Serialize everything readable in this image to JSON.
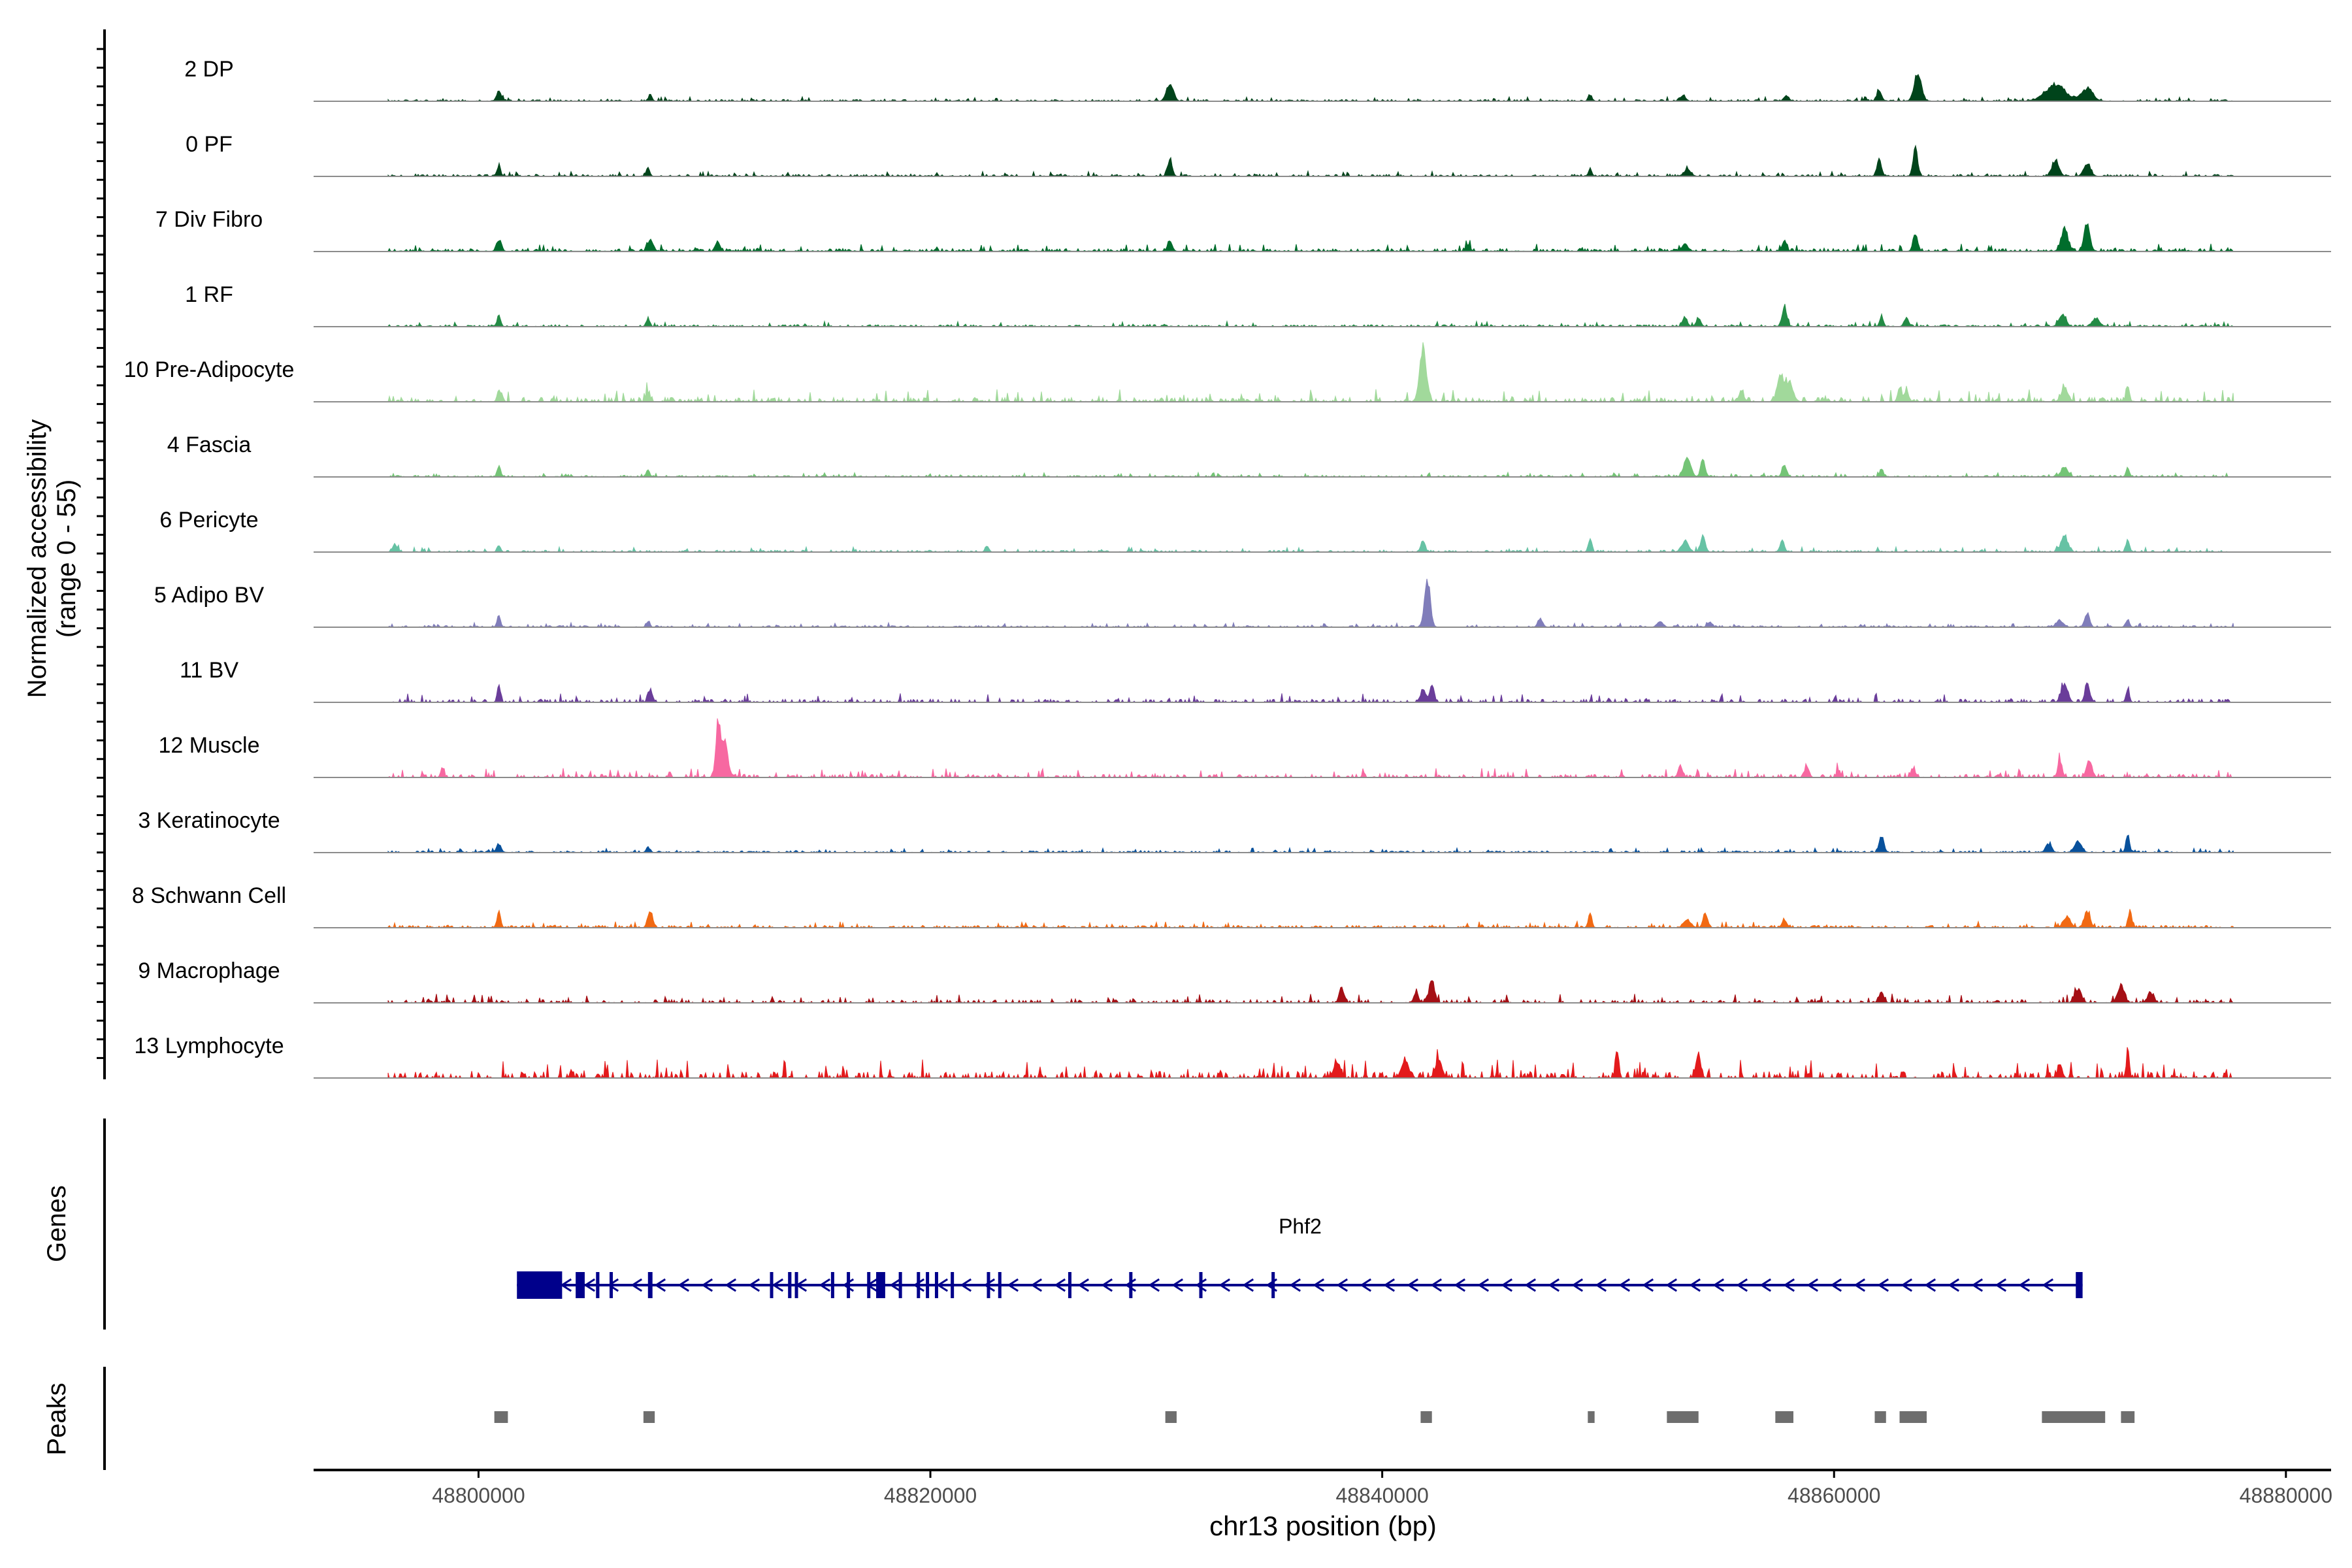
{
  "chart_data": {
    "type": "area",
    "title": "",
    "ylabel_line1": "Normalized accessibility",
    "ylabel_line2": "(range 0 - 55)",
    "y_range": [
      0,
      55
    ],
    "xlabel": "chr13 position (bp)",
    "xlim": [
      48792700,
      48882000
    ],
    "x_ticks": [
      {
        "value": 48800000,
        "label": "48800000"
      },
      {
        "value": 48820000,
        "label": "48820000"
      },
      {
        "value": 48840000,
        "label": "48840000"
      },
      {
        "value": 48860000,
        "label": "48860000"
      },
      {
        "value": 48880000,
        "label": "48880000"
      }
    ],
    "tracks": [
      {
        "name": "2 DP",
        "color": "#00441b",
        "range": [
          48796000,
          48877700
        ],
        "base": 0.03,
        "noise": 0.07,
        "peaks": [
          [
            48800900,
            0.18,
            200
          ],
          [
            48807600,
            0.12,
            150
          ],
          [
            48830600,
            0.28,
            300
          ],
          [
            48849200,
            0.12,
            150
          ],
          [
            48853300,
            0.1,
            250
          ],
          [
            48857900,
            0.1,
            200
          ],
          [
            48862000,
            0.18,
            200
          ],
          [
            48863700,
            0.55,
            300
          ],
          [
            48869800,
            0.28,
            900
          ],
          [
            48871200,
            0.22,
            500
          ]
        ]
      },
      {
        "name": "0 PF",
        "color": "#00441b",
        "range": [
          48796000,
          48877700
        ],
        "base": 0.03,
        "noise": 0.08,
        "peaks": [
          [
            48800900,
            0.2,
            150
          ],
          [
            48807500,
            0.15,
            150
          ],
          [
            48830600,
            0.32,
            200
          ],
          [
            48849200,
            0.12,
            150
          ],
          [
            48853500,
            0.12,
            300
          ],
          [
            48862000,
            0.3,
            200
          ],
          [
            48863600,
            0.5,
            200
          ],
          [
            48869800,
            0.3,
            300
          ],
          [
            48871200,
            0.22,
            300
          ]
        ]
      },
      {
        "name": "7 Div Fibro",
        "color": "#006d2c",
        "range": [
          48796000,
          48877700
        ],
        "base": 0.04,
        "noise": 0.12,
        "peaks": [
          [
            48800900,
            0.22,
            200
          ],
          [
            48807600,
            0.2,
            250
          ],
          [
            48810600,
            0.15,
            200
          ],
          [
            48830600,
            0.18,
            200
          ],
          [
            48843800,
            0.1,
            200
          ],
          [
            48853400,
            0.15,
            250
          ],
          [
            48857800,
            0.2,
            200
          ],
          [
            48863600,
            0.3,
            200
          ],
          [
            48870200,
            0.4,
            300
          ],
          [
            48871200,
            0.55,
            250
          ]
        ]
      },
      {
        "name": "1 RF",
        "color": "#238b45",
        "range": [
          48796000,
          48877700
        ],
        "base": 0.03,
        "noise": 0.08,
        "peaks": [
          [
            48800900,
            0.22,
            150
          ],
          [
            48807500,
            0.15,
            150
          ],
          [
            48853400,
            0.18,
            200
          ],
          [
            48854000,
            0.14,
            200
          ],
          [
            48857800,
            0.38,
            200
          ],
          [
            48862100,
            0.2,
            150
          ],
          [
            48863200,
            0.15,
            200
          ],
          [
            48870100,
            0.2,
            300
          ],
          [
            48871600,
            0.15,
            300
          ]
        ]
      },
      {
        "name": "10 Pre-Adipocyte",
        "color": "#a1d99b",
        "range": [
          48796000,
          48877700
        ],
        "base": 0.02,
        "noise": 0.2,
        "peaks": [
          [
            48800900,
            0.2,
            150
          ],
          [
            48807500,
            0.15,
            200
          ],
          [
            48841800,
            1.0,
            300
          ],
          [
            48855900,
            0.2,
            200
          ],
          [
            48857600,
            0.45,
            250
          ],
          [
            48858000,
            0.35,
            350
          ],
          [
            48862900,
            0.3,
            150
          ],
          [
            48863200,
            0.2,
            200
          ],
          [
            48870200,
            0.25,
            300
          ],
          [
            48873000,
            0.28,
            150
          ]
        ]
      },
      {
        "name": "4 Fascia",
        "color": "#74c476",
        "range": [
          48796000,
          48877700
        ],
        "base": 0.02,
        "noise": 0.07,
        "peaks": [
          [
            48800900,
            0.2,
            150
          ],
          [
            48807500,
            0.12,
            150
          ],
          [
            48853500,
            0.35,
            300
          ],
          [
            48854200,
            0.3,
            200
          ],
          [
            48857800,
            0.22,
            200
          ],
          [
            48862100,
            0.15,
            150
          ],
          [
            48870200,
            0.18,
            300
          ],
          [
            48873000,
            0.15,
            150
          ]
        ]
      },
      {
        "name": "6 Pericyte",
        "color": "#66c2a4",
        "range": [
          48796000,
          48877700
        ],
        "base": 0.02,
        "noise": 0.08,
        "peaks": [
          [
            48796300,
            0.15,
            200
          ],
          [
            48800900,
            0.12,
            150
          ],
          [
            48822500,
            0.1,
            150
          ],
          [
            48841800,
            0.18,
            200
          ],
          [
            48849200,
            0.25,
            150
          ],
          [
            48853400,
            0.2,
            300
          ],
          [
            48854200,
            0.3,
            200
          ],
          [
            48857700,
            0.2,
            200
          ],
          [
            48870200,
            0.3,
            300
          ],
          [
            48873000,
            0.25,
            150
          ]
        ]
      },
      {
        "name": "5 Adipo BV",
        "color": "#807dba",
        "range": [
          48796000,
          48877700
        ],
        "base": 0.02,
        "noise": 0.07,
        "peaks": [
          [
            48800900,
            0.22,
            150
          ],
          [
            48807500,
            0.1,
            150
          ],
          [
            48842000,
            0.85,
            250
          ],
          [
            48847000,
            0.15,
            200
          ],
          [
            48852300,
            0.1,
            250
          ],
          [
            48854500,
            0.1,
            200
          ],
          [
            48870000,
            0.12,
            300
          ],
          [
            48871200,
            0.25,
            200
          ],
          [
            48873000,
            0.15,
            150
          ]
        ]
      },
      {
        "name": "11 BV",
        "color": "#6a3d9a",
        "range": [
          48796000,
          48877700
        ],
        "base": 0.0,
        "noise": 0.15,
        "peaks": [
          [
            48800900,
            0.3,
            150
          ],
          [
            48807600,
            0.25,
            200
          ],
          [
            48841800,
            0.25,
            200
          ],
          [
            48842200,
            0.3,
            200
          ],
          [
            48870200,
            0.3,
            300
          ],
          [
            48871200,
            0.35,
            200
          ],
          [
            48873000,
            0.25,
            150
          ],
          [
            48877800,
            0.2,
            100
          ]
        ]
      },
      {
        "name": "12 Muscle",
        "color": "#f768a1",
        "range": [
          48796000,
          48877700
        ],
        "base": 0.0,
        "noise": 0.15,
        "peaks": [
          [
            48810600,
            1.0,
            200
          ],
          [
            48810900,
            0.6,
            300
          ],
          [
            48798400,
            0.2,
            150
          ],
          [
            48853200,
            0.2,
            200
          ],
          [
            48858800,
            0.2,
            200
          ],
          [
            48860200,
            0.15,
            150
          ],
          [
            48863500,
            0.18,
            200
          ],
          [
            48870000,
            0.3,
            200
          ],
          [
            48871300,
            0.3,
            250
          ]
        ]
      },
      {
        "name": "3 Keratinocyte",
        "color": "#08519c",
        "range": [
          48796000,
          48877700
        ],
        "base": 0.03,
        "noise": 0.07,
        "peaks": [
          [
            48800900,
            0.15,
            200
          ],
          [
            48807500,
            0.1,
            150
          ],
          [
            48862100,
            0.32,
            200
          ],
          [
            48869500,
            0.15,
            250
          ],
          [
            48870800,
            0.2,
            300
          ],
          [
            48873000,
            0.35,
            150
          ]
        ]
      },
      {
        "name": "8 Schwann Cell",
        "color": "#f16913",
        "range": [
          48796000,
          48877700
        ],
        "base": 0.03,
        "noise": 0.1,
        "peaks": [
          [
            48800900,
            0.3,
            150
          ],
          [
            48807600,
            0.32,
            200
          ],
          [
            48849200,
            0.28,
            150
          ],
          [
            48853500,
            0.15,
            300
          ],
          [
            48854300,
            0.25,
            200
          ],
          [
            48857800,
            0.15,
            200
          ],
          [
            48870300,
            0.2,
            300
          ],
          [
            48871200,
            0.3,
            250
          ],
          [
            48873100,
            0.3,
            150
          ]
        ]
      },
      {
        "name": "9 Macrophage",
        "color": "#a50f15",
        "range": [
          48796000,
          48877700
        ],
        "base": 0.0,
        "noise": 0.15,
        "peaks": [
          [
            48838200,
            0.3,
            200
          ],
          [
            48842200,
            0.4,
            250
          ],
          [
            48841500,
            0.2,
            200
          ],
          [
            48862100,
            0.2,
            200
          ],
          [
            48870800,
            0.25,
            300
          ],
          [
            48872700,
            0.3,
            300
          ],
          [
            48874000,
            0.2,
            250
          ]
        ]
      },
      {
        "name": "13 Lymphocyte",
        "color": "#e31a1c",
        "range": [
          48796000,
          48877700
        ],
        "base": 0.0,
        "noise": 0.3,
        "peaks": [
          [
            48850400,
            0.55,
            150
          ],
          [
            48854000,
            0.45,
            200
          ],
          [
            48873000,
            0.6,
            120
          ],
          [
            48838000,
            0.3,
            300
          ],
          [
            48841000,
            0.35,
            300
          ],
          [
            48842500,
            0.3,
            300
          ],
          [
            48870000,
            0.25,
            200
          ]
        ]
      }
    ],
    "genes": {
      "label": "Genes",
      "name": "Phf2",
      "color": "#00008b",
      "strand": "-",
      "start": 48801700,
      "end": 48871000,
      "exons": [
        [
          48801700,
          48803700
        ],
        [
          48804300,
          48804700
        ],
        [
          48805200,
          48805350
        ],
        [
          48805800,
          48805900
        ],
        [
          48807500,
          48807700
        ],
        [
          48812900,
          48813000
        ],
        [
          48813700,
          48813850
        ],
        [
          48814000,
          48814100
        ],
        [
          48815600,
          48815700
        ],
        [
          48816300,
          48816400
        ],
        [
          48817200,
          48817300
        ],
        [
          48817600,
          48818000
        ],
        [
          48818600,
          48818700
        ],
        [
          48819400,
          48819500
        ],
        [
          48819800,
          48819900
        ],
        [
          48820200,
          48820300
        ],
        [
          48820900,
          48821000
        ],
        [
          48822500,
          48822600
        ],
        [
          48823000,
          48823100
        ],
        [
          48826100,
          48826200
        ],
        [
          48828800,
          48828900
        ],
        [
          48831900,
          48832000
        ],
        [
          48835100,
          48835200
        ],
        [
          48870700,
          48871000
        ]
      ]
    },
    "peaks": {
      "label": "Peaks",
      "color": "#6e6e6e",
      "intervals": [
        [
          48800700,
          48801300
        ],
        [
          48807300,
          48807800
        ],
        [
          48830400,
          48830900
        ],
        [
          48841700,
          48842200
        ],
        [
          48849100,
          48849400
        ],
        [
          48852600,
          48854000
        ],
        [
          48857400,
          48858200
        ],
        [
          48861800,
          48862300
        ],
        [
          48862900,
          48864100
        ],
        [
          48869200,
          48872000
        ],
        [
          48872700,
          48873300
        ]
      ]
    }
  }
}
